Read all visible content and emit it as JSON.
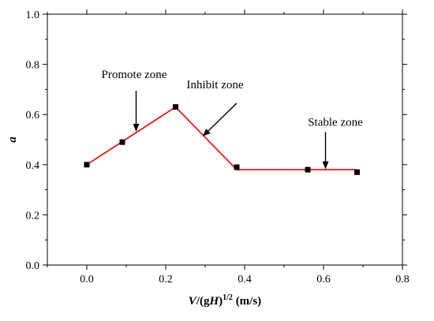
{
  "chart_data": {
    "type": "line",
    "title": "",
    "xlabel_parts": {
      "v": "V",
      "mid": "/(g",
      "h": "H",
      "close": ")",
      "exp": "1/2",
      "unit": " (m/s)"
    },
    "ylabel": "a",
    "xlim": [
      -0.1,
      0.8
    ],
    "ylim": [
      0.0,
      1.0
    ],
    "xticks": [
      "0.0",
      "0.2",
      "0.4",
      "0.6",
      "0.8"
    ],
    "yticks": [
      "0.0",
      "0.2",
      "0.4",
      "0.6",
      "0.8",
      "1.0"
    ],
    "grid": false,
    "series": [
      {
        "marker": "square",
        "color": "#000000",
        "x": [
          0.0,
          0.09,
          0.225,
          0.38,
          0.56,
          0.685
        ],
        "y": [
          0.4,
          0.49,
          0.63,
          0.39,
          0.38,
          0.37
        ]
      },
      {
        "marker": "none",
        "color": "#ff0000",
        "x": [
          0.0,
          0.225,
          0.38,
          0.685
        ],
        "y": [
          0.4,
          0.63,
          0.38,
          0.38
        ]
      }
    ],
    "annotations": [
      {
        "text": "Promote zone",
        "text_x": 0.12,
        "text_y": 0.745,
        "arrow_from": [
          0.125,
          0.695
        ],
        "arrow_to": [
          0.125,
          0.535
        ]
      },
      {
        "text": "Inhibit zone",
        "text_x": 0.325,
        "text_y": 0.705,
        "arrow_from": [
          0.38,
          0.645
        ],
        "arrow_to": [
          0.295,
          0.515
        ]
      },
      {
        "text": "Stable zone",
        "text_x": 0.63,
        "text_y": 0.555,
        "arrow_from": [
          0.605,
          0.53
        ],
        "arrow_to": [
          0.605,
          0.385
        ]
      }
    ]
  }
}
